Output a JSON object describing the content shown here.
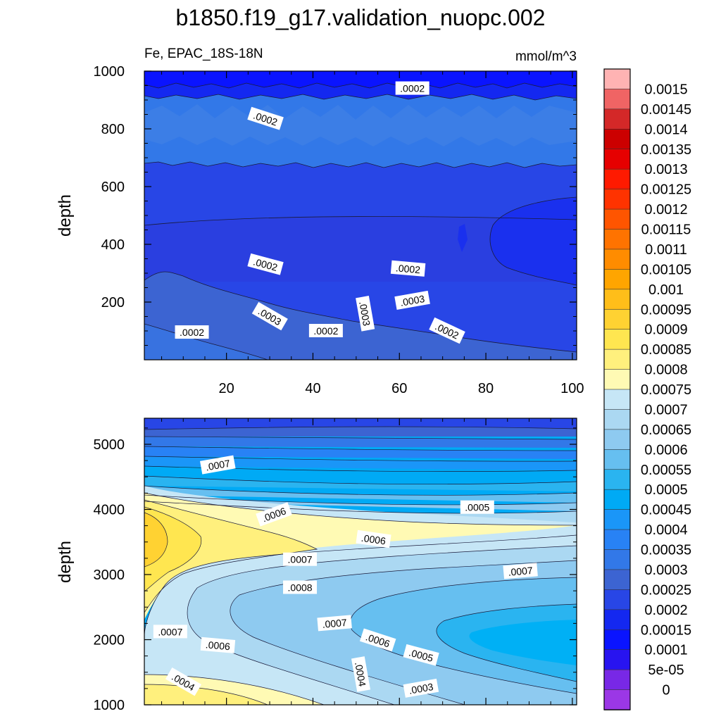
{
  "title": "b1850.f19_g17.validation_nuopc.002",
  "panel_left_label": "Fe, EPAC_18S-18N",
  "panel_right_label": "mmol/m^3",
  "chart_data": [
    {
      "type": "heatmap",
      "name": "upper",
      "ylabel": "depth",
      "xlabel": "",
      "xlim": [
        1,
        101
      ],
      "ylim": [
        1000,
        0
      ],
      "x_ticks": [
        20,
        40,
        60,
        80,
        100
      ],
      "y_ticks": [
        200,
        400,
        600,
        800,
        1000
      ],
      "contour_labels": [
        {
          "text": ".0002",
          "x": 12,
          "y": 95
        },
        {
          "text": ".0002",
          "x": 43,
          "y": 100
        },
        {
          "text": ".0002",
          "x": 71,
          "y": 100
        },
        {
          "text": ".0003",
          "x": 30,
          "y": 150
        },
        {
          "text": ".0003",
          "x": 52,
          "y": 160
        },
        {
          "text": ".0003",
          "x": 63,
          "y": 205
        },
        {
          "text": ".0002",
          "x": 29,
          "y": 330
        },
        {
          "text": ".0002",
          "x": 62,
          "y": 315
        },
        {
          "text": ".0002",
          "x": 29,
          "y": 835
        },
        {
          "text": ".0002",
          "x": 63,
          "y": 940
        }
      ]
    },
    {
      "type": "heatmap",
      "name": "lower",
      "ylabel": "depth",
      "xlabel": "",
      "xlim": [
        1,
        101
      ],
      "ylim": [
        5400,
        1000
      ],
      "x_ticks": [
        20,
        40,
        60,
        80,
        100
      ],
      "y_ticks": [
        1000,
        2000,
        3000,
        4000,
        5000
      ],
      "contour_labels": [
        {
          "text": ".0004",
          "x": 10,
          "y": 1350
        },
        {
          "text": ".0004",
          "x": 51,
          "y": 1470
        },
        {
          "text": ".0003",
          "x": 65,
          "y": 1250
        },
        {
          "text": ".0005",
          "x": 65,
          "y": 1760
        },
        {
          "text": ".0006",
          "x": 18,
          "y": 1910
        },
        {
          "text": ".0006",
          "x": 55,
          "y": 1990
        },
        {
          "text": ".0007",
          "x": 7,
          "y": 2120
        },
        {
          "text": ".0007",
          "x": 45,
          "y": 2250
        },
        {
          "text": ".0008",
          "x": 37,
          "y": 2800
        },
        {
          "text": ".0007",
          "x": 37,
          "y": 3230
        },
        {
          "text": ".0007",
          "x": 88,
          "y": 3050
        },
        {
          "text": ".0006",
          "x": 54,
          "y": 3540
        },
        {
          "text": ".0006",
          "x": 31,
          "y": 3920
        },
        {
          "text": ".0005",
          "x": 78,
          "y": 4030
        },
        {
          "text": ".0007",
          "x": 18,
          "y": 4680
        }
      ]
    }
  ],
  "colorbar": {
    "labels": [
      "0.0015",
      "0.00145",
      "0.0014",
      "0.00135",
      "0.0013",
      "0.00125",
      "0.0012",
      "0.00115",
      "0.0011",
      "0.00105",
      "0.001",
      "0.00095",
      "0.0009",
      "0.00085",
      "0.0008",
      "0.00075",
      "0.0007",
      "0.00065",
      "0.0006",
      "0.00055",
      "0.0005",
      "0.00045",
      "0.0004",
      "0.00035",
      "0.0003",
      "0.00025",
      "0.0002",
      "0.00015",
      "0.0001",
      "5e-05",
      "0"
    ],
    "colors": [
      "#ffb3b3",
      "#f06464",
      "#d42828",
      "#cc0000",
      "#e60000",
      "#ff1a00",
      "#ff3300",
      "#ff5500",
      "#ff7300",
      "#ff8c00",
      "#ffa500",
      "#ffbe19",
      "#ffd232",
      "#ffe650",
      "#fff07d",
      "#fffab4",
      "#c6e6f6",
      "#abd8f2",
      "#8ecaf0",
      "#66bff0",
      "#2ab4f0",
      "#00aaf5",
      "#1a96f8",
      "#2882f5",
      "#3278e8",
      "#3c64d2",
      "#2846e6",
      "#1428f0",
      "#0a14ff",
      "#2814f0",
      "#7828e6",
      "#9b37e6"
    ]
  }
}
